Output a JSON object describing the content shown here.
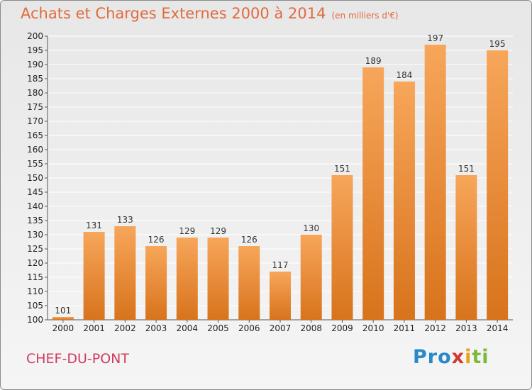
{
  "title": "Achats et Charges Externes 2000 à 2014",
  "subtitle": "(en milliers d'€)",
  "commune": "CHEF-DU-PONT",
  "logo": {
    "p1": "Pro",
    "p2": "x",
    "p3": "i",
    "p4": "ti"
  },
  "colors": {
    "bar_top": "#f7a65a",
    "bar_bottom": "#d8731c",
    "title": "#e06b3f",
    "commune": "#d23a5e"
  },
  "chart_data": {
    "type": "bar",
    "categories": [
      "2000",
      "2001",
      "2002",
      "2003",
      "2004",
      "2005",
      "2006",
      "2007",
      "2008",
      "2009",
      "2010",
      "2011",
      "2012",
      "2013",
      "2014"
    ],
    "values": [
      101,
      131,
      133,
      126,
      129,
      129,
      126,
      117,
      130,
      151,
      189,
      184,
      197,
      151,
      195
    ],
    "title": "Achats et Charges Externes 2000 à 2014",
    "subtitle": "(en milliers d'€)",
    "xlabel": "",
    "ylabel": "",
    "ylim": [
      100,
      200
    ],
    "yticks": [
      100,
      105,
      110,
      115,
      120,
      125,
      130,
      135,
      140,
      145,
      150,
      155,
      160,
      165,
      170,
      175,
      180,
      185,
      190,
      195,
      200
    ],
    "grid": true,
    "legend": "none"
  }
}
